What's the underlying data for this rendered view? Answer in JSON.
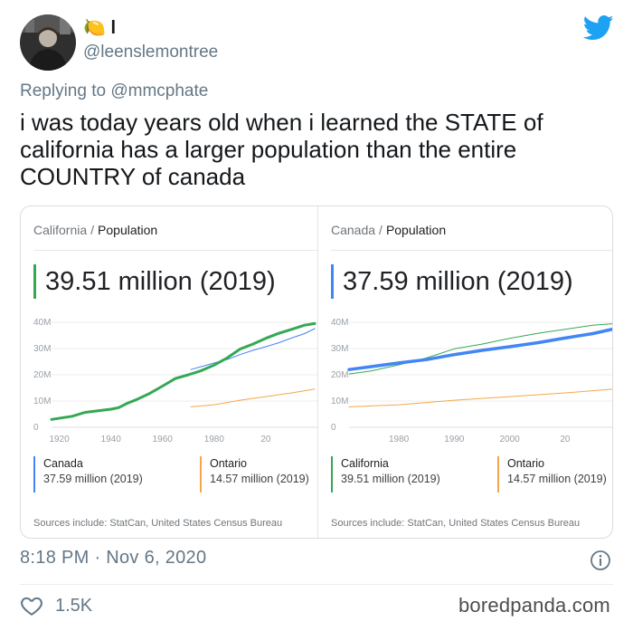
{
  "tweet": {
    "display_name": "🍋 l",
    "handle": "@leenslemontree",
    "replying_prefix": "Replying to",
    "replying_to": "@mmcphate",
    "text": "i was today years old when i learned the STATE of california has a larger population than the entire COUNTRY of canada",
    "timestamp": "8:18 PM · Nov 6, 2020",
    "likes": "1.5K",
    "watermark": "boredpanda.com",
    "icons": {
      "brand": "twitter-bird-icon",
      "info": "info-icon",
      "like": "heart-icon"
    },
    "colors": {
      "twitter_blue": "#1da1f2",
      "muted_text": "#657786"
    }
  },
  "card": {
    "left": {
      "crumb_place": "California",
      "crumb_sep": "/",
      "crumb_topic": "Population",
      "value": "39.51 million (2019)",
      "accent": "#34a853",
      "legend": [
        {
          "name": "Canada",
          "value": "37.59 million (2019)",
          "color": "#4285f4"
        },
        {
          "name": "Ontario",
          "value": "14.57 million (2019)",
          "color": "#f6a64a"
        }
      ],
      "sources": "Sources include: StatCan, United States Census Bureau"
    },
    "right": {
      "crumb_place": "Canada",
      "crumb_sep": "/",
      "crumb_topic": "Population",
      "value": "37.59 million (2019)",
      "accent": "#4285f4",
      "legend": [
        {
          "name": "California",
          "value": "39.51 million (2019)",
          "color": "#34a853"
        },
        {
          "name": "Ontario",
          "value": "14.57 million (2019)",
          "color": "#f6a64a"
        }
      ],
      "sources": "Sources include: StatCan, United States Census Bureau"
    }
  },
  "chart_data": [
    {
      "type": "line",
      "title": "California / Population",
      "xlabel": "",
      "ylabel": "",
      "y_ticks": [
        "40M",
        "30M",
        "20M",
        "10M",
        "0"
      ],
      "x_ticks": [
        "1920",
        "1940",
        "1960",
        "1980",
        "20"
      ],
      "ylim": [
        0,
        40
      ],
      "xlim": [
        1917,
        2020
      ],
      "grid": true,
      "series": [
        {
          "name": "California",
          "color": "#34a853",
          "width": 3,
          "x": [
            1917,
            1925,
            1930,
            1935,
            1940,
            1943,
            1946,
            1950,
            1955,
            1960,
            1965,
            1970,
            1975,
            1980,
            1985,
            1990,
            1995,
            2000,
            2005,
            2010,
            2015,
            2019
          ],
          "y": [
            3.0,
            4.2,
            5.7,
            6.3,
            6.9,
            7.5,
            9.0,
            10.6,
            12.9,
            15.7,
            18.6,
            20.0,
            21.6,
            23.7,
            26.4,
            29.8,
            31.7,
            33.9,
            35.8,
            37.3,
            38.9,
            39.5
          ]
        },
        {
          "name": "Canada",
          "color": "#4285f4",
          "width": 1,
          "x": [
            1971,
            1975,
            1980,
            1985,
            1990,
            1995,
            2000,
            2005,
            2010,
            2015,
            2019
          ],
          "y": [
            22.0,
            23.1,
            24.5,
            25.8,
            27.7,
            29.3,
            30.7,
            32.2,
            34.0,
            35.7,
            37.6
          ]
        },
        {
          "name": "Ontario",
          "color": "#f6a64a",
          "width": 1,
          "x": [
            1971,
            1980,
            1990,
            2000,
            2010,
            2019
          ],
          "y": [
            7.8,
            8.6,
            10.3,
            11.7,
            13.1,
            14.6
          ]
        }
      ]
    },
    {
      "type": "line",
      "title": "Canada / Population",
      "xlabel": "",
      "ylabel": "",
      "y_ticks": [
        "40M",
        "30M",
        "20M",
        "10M",
        "0"
      ],
      "x_ticks": [
        "1980",
        "1990",
        "2000",
        "20"
      ],
      "ylim": [
        0,
        40
      ],
      "xlim": [
        1971,
        2019
      ],
      "grid": true,
      "series": [
        {
          "name": "Canada",
          "color": "#4285f4",
          "width": 3.5,
          "x": [
            1971,
            1975,
            1980,
            1985,
            1990,
            1995,
            2000,
            2005,
            2010,
            2015,
            2019
          ],
          "y": [
            22.0,
            23.1,
            24.5,
            25.8,
            27.7,
            29.3,
            30.7,
            32.2,
            34.0,
            35.7,
            37.6
          ]
        },
        {
          "name": "California",
          "color": "#34a853",
          "width": 1,
          "x": [
            1971,
            1975,
            1980,
            1985,
            1990,
            1995,
            2000,
            2005,
            2010,
            2015,
            2019
          ],
          "y": [
            20.3,
            21.5,
            23.8,
            26.4,
            29.9,
            31.7,
            33.9,
            35.8,
            37.3,
            38.9,
            39.5
          ]
        },
        {
          "name": "Ontario",
          "color": "#f6a64a",
          "width": 1,
          "x": [
            1971,
            1980,
            1990,
            2000,
            2010,
            2019
          ],
          "y": [
            7.8,
            8.6,
            10.3,
            11.7,
            13.1,
            14.6
          ]
        }
      ]
    }
  ]
}
